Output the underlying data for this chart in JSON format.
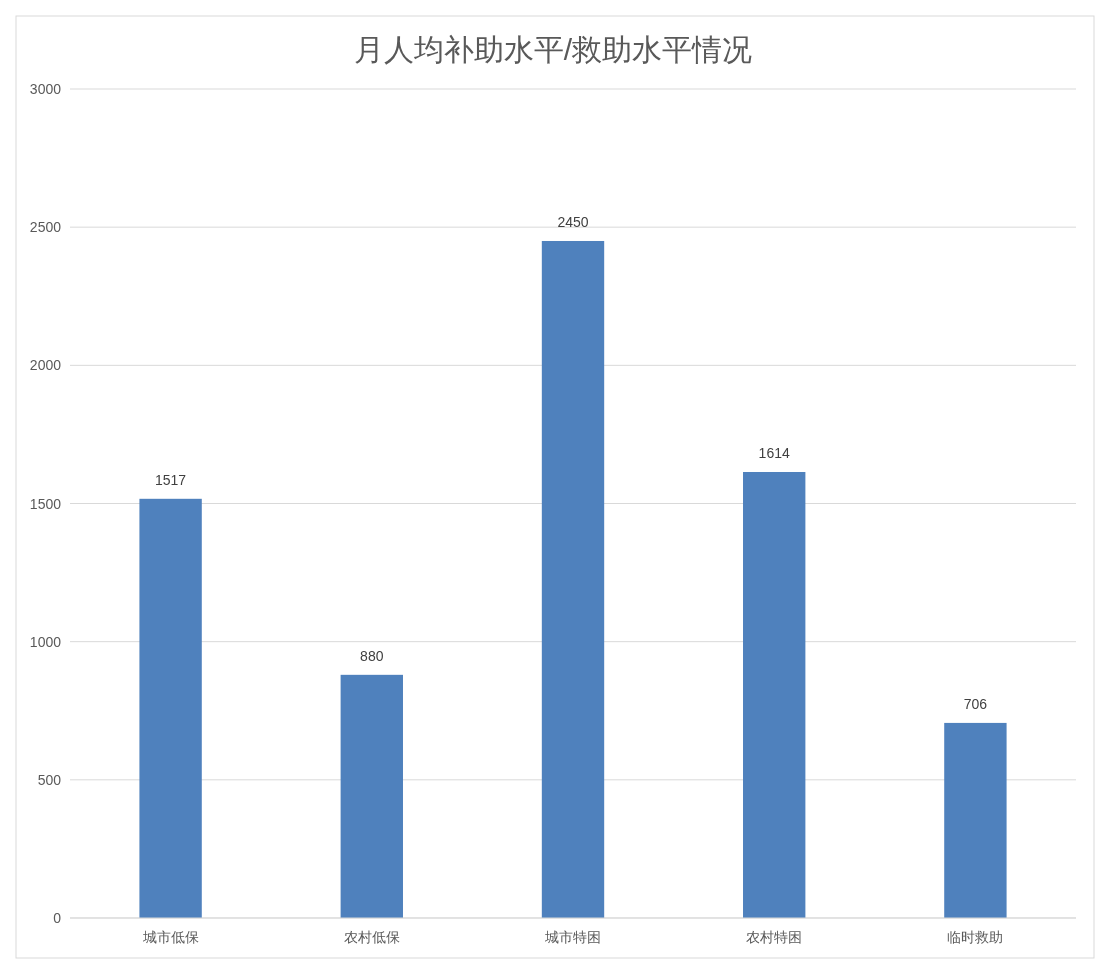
{
  "chart_data": {
    "type": "bar",
    "title": "月人均补助水平/救助水平情况",
    "categories": [
      "城市低保",
      "农村低保",
      "城市特困",
      "农村特困",
      "临时救助"
    ],
    "values": [
      1517,
      880,
      2450,
      1614,
      706
    ],
    "color": "#4f81bd",
    "ylim": [
      0,
      3000
    ],
    "yticks": [
      0,
      500,
      1000,
      1500,
      2000,
      2500,
      3000
    ],
    "grid": true,
    "data_labels": true
  }
}
